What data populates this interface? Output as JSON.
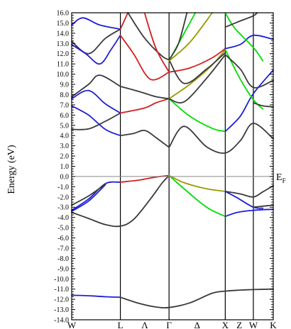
{
  "chart_data": {
    "type": "line",
    "ylabel": "Energy (eV)",
    "ylim": [
      -14.0,
      16.0
    ],
    "ytick_step": 1.0,
    "kpoints": [
      {
        "label": "W",
        "x": 0.0
      },
      {
        "label": "L",
        "x": 0.866
      },
      {
        "label": "Λ",
        "x": 1.3
      },
      {
        "label": "Γ",
        "x": 1.732
      },
      {
        "label": "Δ",
        "x": 2.232
      },
      {
        "label": "X",
        "x": 2.732
      },
      {
        "label": "Z",
        "x": 2.982
      },
      {
        "label": "W",
        "x": 3.232
      },
      {
        "label": "K",
        "x": 3.586
      }
    ],
    "vertical_lines_at": [
      0.866,
      1.732,
      2.732,
      3.232
    ],
    "fermi_level": {
      "energy": 0.0,
      "label": "E",
      "subscript": "F"
    },
    "bands": [
      {
        "color": "#1f1fd6",
        "points": [
          [
            0,
            -11.6
          ],
          [
            0.3,
            -11.65
          ],
          [
            0.6,
            -11.75
          ],
          [
            0.866,
            -11.8
          ]
        ]
      },
      {
        "color": "#3a3a3a",
        "points": [
          [
            0.866,
            -11.8
          ],
          [
            1.2,
            -12.4
          ],
          [
            1.5,
            -12.75
          ],
          [
            1.732,
            -12.8
          ],
          [
            2.1,
            -12.35
          ],
          [
            2.5,
            -11.4
          ],
          [
            2.732,
            -11.2
          ],
          [
            3.0,
            -11.1
          ],
          [
            3.232,
            -11.05
          ],
          [
            3.586,
            -11.0
          ]
        ]
      },
      {
        "color": "#3a3a3a",
        "points": [
          [
            0,
            -3.5
          ],
          [
            0.3,
            -4.1
          ],
          [
            0.6,
            -4.7
          ],
          [
            0.866,
            -4.85
          ],
          [
            1.1,
            -4.2
          ],
          [
            1.4,
            -2.2
          ],
          [
            1.6,
            -0.7
          ],
          [
            1.732,
            0.1
          ]
        ]
      },
      {
        "color": "#1f1fd6",
        "points": [
          [
            0,
            -3.3
          ],
          [
            0.3,
            -2.2
          ],
          [
            0.6,
            -0.7
          ],
          [
            0.866,
            -0.55
          ]
        ]
      },
      {
        "color": "#1f1fd6",
        "points": [
          [
            0,
            -3.4
          ],
          [
            0.3,
            -2.4
          ],
          [
            0.6,
            -0.8
          ]
        ]
      },
      {
        "color": "#3a3a3a",
        "points": [
          [
            0,
            -2.8
          ],
          [
            0.3,
            -1.9
          ],
          [
            0.6,
            -0.75
          ]
        ]
      },
      {
        "color": "#d42020",
        "points": [
          [
            0.866,
            -0.55
          ],
          [
            1.2,
            -0.35
          ],
          [
            1.5,
            -0.05
          ],
          [
            1.732,
            0.1
          ]
        ]
      },
      {
        "color": "#00dd00",
        "points": [
          [
            1.732,
            0.1
          ],
          [
            2.0,
            -1.2
          ],
          [
            2.4,
            -3.0
          ],
          [
            2.732,
            -3.9
          ]
        ]
      },
      {
        "color": "#999900",
        "points": [
          [
            1.732,
            0.1
          ],
          [
            2.0,
            -0.6
          ],
          [
            2.4,
            -1.2
          ],
          [
            2.732,
            -1.45
          ]
        ]
      },
      {
        "color": "#1f1fd6",
        "points": [
          [
            2.732,
            -3.9
          ],
          [
            2.95,
            -3.5
          ],
          [
            3.232,
            -3.3
          ],
          [
            3.586,
            -3.2
          ]
        ]
      },
      {
        "color": "#1f1fd6",
        "points": [
          [
            2.732,
            -1.45
          ],
          [
            2.95,
            -2.1
          ],
          [
            3.232,
            -3.0
          ],
          [
            3.4,
            -3.1
          ]
        ]
      },
      {
        "color": "#3a3a3a",
        "points": [
          [
            2.732,
            -1.45
          ],
          [
            3.0,
            -1.7
          ],
          [
            3.232,
            -2.0
          ],
          [
            3.4,
            -1.5
          ],
          [
            3.586,
            -0.9
          ]
        ]
      },
      {
        "color": "#3a3a3a",
        "points": [
          [
            3.232,
            -3.0
          ],
          [
            3.4,
            -2.9
          ],
          [
            3.586,
            -2.8
          ]
        ]
      },
      {
        "color": "#3a3a3a",
        "points": [
          [
            0,
            4.6
          ],
          [
            0.3,
            4.65
          ],
          [
            0.6,
            5.4
          ],
          [
            0.866,
            6.2
          ]
        ]
      },
      {
        "color": "#1f1fd6",
        "points": [
          [
            0,
            6.9
          ],
          [
            0.3,
            6.0
          ],
          [
            0.6,
            4.6
          ],
          [
            0.866,
            4.0
          ]
        ]
      },
      {
        "color": "#1f1fd6",
        "points": [
          [
            0,
            7.6
          ],
          [
            0.3,
            8.4
          ],
          [
            0.6,
            7.1
          ],
          [
            0.866,
            6.2
          ]
        ]
      },
      {
        "color": "#3a3a3a",
        "points": [
          [
            0,
            7.8
          ],
          [
            0.3,
            9.0
          ],
          [
            0.5,
            9.9
          ],
          [
            0.866,
            8.8
          ]
        ]
      },
      {
        "color": "#3a3a3a",
        "points": [
          [
            0.866,
            4.0
          ],
          [
            1.1,
            4.2
          ],
          [
            1.3,
            4.5
          ],
          [
            1.5,
            3.8
          ],
          [
            1.732,
            2.85
          ]
        ]
      },
      {
        "color": "#d42020",
        "points": [
          [
            0.866,
            6.2
          ],
          [
            1.3,
            6.7
          ],
          [
            1.5,
            7.2
          ],
          [
            1.732,
            7.6
          ]
        ]
      },
      {
        "color": "#3a3a3a",
        "points": [
          [
            0.866,
            8.8
          ],
          [
            1.2,
            8.3
          ],
          [
            1.5,
            7.8
          ],
          [
            1.732,
            7.6
          ]
        ]
      },
      {
        "color": "#3a3a3a",
        "points": [
          [
            1.732,
            2.85
          ],
          [
            2.0,
            4.9
          ],
          [
            2.4,
            2.9
          ],
          [
            2.732,
            2.3
          ],
          [
            3.0,
            3.5
          ],
          [
            3.232,
            5.2
          ],
          [
            3.586,
            3.7
          ]
        ]
      },
      {
        "color": "#00dd00",
        "points": [
          [
            1.732,
            7.6
          ],
          [
            2.1,
            5.9
          ],
          [
            2.5,
            4.7
          ],
          [
            2.732,
            4.4
          ]
        ]
      },
      {
        "color": "#999900",
        "points": [
          [
            1.732,
            7.6
          ],
          [
            2.1,
            9.0
          ],
          [
            2.5,
            10.9
          ],
          [
            2.732,
            12.4
          ]
        ]
      },
      {
        "color": "#3a3a3a",
        "points": [
          [
            1.732,
            7.6
          ],
          [
            2.0,
            7.3
          ],
          [
            2.4,
            9.6
          ],
          [
            2.732,
            11.9
          ]
        ]
      },
      {
        "color": "#1f1fd6",
        "points": [
          [
            2.732,
            4.4
          ],
          [
            3.0,
            5.9
          ],
          [
            3.232,
            8.1
          ],
          [
            3.586,
            10.4
          ]
        ]
      },
      {
        "color": "#00dd00",
        "points": [
          [
            2.732,
            12.4
          ],
          [
            3.0,
            9.5
          ],
          [
            3.232,
            7.5
          ],
          [
            3.4,
            6.6
          ]
        ]
      },
      {
        "color": "#3a3a3a",
        "points": [
          [
            2.732,
            11.9
          ],
          [
            3.0,
            10.5
          ],
          [
            3.232,
            8.7
          ],
          [
            3.586,
            9.4
          ]
        ]
      },
      {
        "color": "#3a3a3a",
        "points": [
          [
            3.232,
            7.2
          ],
          [
            3.4,
            6.9
          ],
          [
            3.586,
            6.8
          ]
        ]
      },
      {
        "color": "#1f1fd6",
        "points": [
          [
            0,
            14.8
          ],
          [
            0.2,
            15.5
          ],
          [
            0.5,
            14.8
          ],
          [
            0.866,
            14.4
          ]
        ]
      },
      {
        "color": "#3a3a3a",
        "points": [
          [
            0,
            13.2
          ],
          [
            0.3,
            12.0
          ],
          [
            0.6,
            13.5
          ],
          [
            0.866,
            14.4
          ]
        ]
      },
      {
        "color": "#1f1fd6",
        "points": [
          [
            0,
            12.9
          ],
          [
            0.25,
            12.0
          ],
          [
            0.5,
            11.0
          ],
          [
            0.7,
            12.4
          ],
          [
            0.866,
            13.8
          ]
        ]
      },
      {
        "color": "#d42020",
        "points": [
          [
            0.866,
            13.8
          ],
          [
            1.1,
            12.0
          ],
          [
            1.4,
            9.5
          ],
          [
            1.732,
            10.2
          ]
        ]
      },
      {
        "color": "#d42020",
        "points": [
          [
            0.866,
            14.4
          ],
          [
            1.0,
            16.0
          ]
        ]
      },
      {
        "color": "#3a3a3a",
        "points": [
          [
            1.0,
            16.0
          ],
          [
            1.3,
            13.5
          ],
          [
            1.6,
            11.8
          ],
          [
            1.732,
            11.4
          ]
        ]
      },
      {
        "color": "#d42020",
        "points": [
          [
            1.3,
            15.9
          ],
          [
            1.5,
            12.5
          ],
          [
            1.732,
            10.2
          ]
        ]
      },
      {
        "color": "#d42020",
        "points": [
          [
            1.732,
            10.2
          ],
          [
            2.1,
            10.6
          ],
          [
            2.5,
            11.6
          ],
          [
            2.732,
            12.5
          ]
        ]
      },
      {
        "color": "#3a3a3a",
        "points": [
          [
            1.732,
            11.4
          ],
          [
            2.0,
            9.1
          ],
          [
            2.4,
            10.5
          ],
          [
            2.732,
            12.1
          ]
        ]
      },
      {
        "color": "#00dd00",
        "points": [
          [
            1.732,
            11.3
          ],
          [
            2.0,
            14.0
          ],
          [
            2.2,
            16.0
          ]
        ]
      },
      {
        "color": "#999900",
        "points": [
          [
            1.732,
            11.3
          ],
          [
            2.1,
            13.1
          ],
          [
            2.5,
            16.0
          ]
        ]
      },
      {
        "color": "#3a3a3a",
        "points": [
          [
            1.732,
            11.4
          ],
          [
            1.9,
            13.0
          ],
          [
            2.05,
            16.0
          ]
        ]
      },
      {
        "color": "#1f1fd6",
        "points": [
          [
            2.732,
            12.5
          ],
          [
            3.0,
            12.9
          ],
          [
            3.232,
            13.8
          ],
          [
            3.586,
            13.4
          ]
        ]
      },
      {
        "color": "#00dd00",
        "points": [
          [
            2.732,
            16.0
          ],
          [
            2.9,
            14.5
          ],
          [
            3.232,
            12.6
          ],
          [
            3.4,
            11.3
          ]
        ]
      },
      {
        "color": "#3a3a3a",
        "points": [
          [
            2.732,
            14.6
          ],
          [
            3.0,
            15.2
          ],
          [
            3.232,
            15.7
          ],
          [
            3.3,
            16.0
          ]
        ]
      }
    ]
  }
}
